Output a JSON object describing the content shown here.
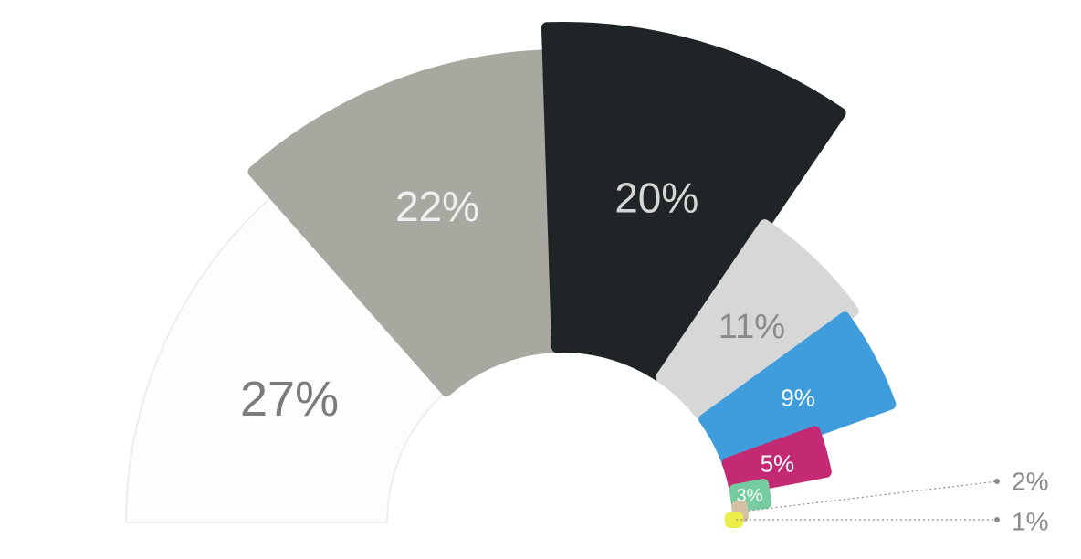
{
  "chart_data": {
    "type": "pie",
    "variant": "half-donut",
    "slices": [
      {
        "label": "27%",
        "value": 27,
        "color": "#fdfdfd",
        "text_color": "#7b7b7b"
      },
      {
        "label": "22%",
        "value": 22,
        "color": "#a9a8a0",
        "text_color": "#efefef"
      },
      {
        "label": "20%",
        "value": 20,
        "color": "#1f2526",
        "text_color": "#d6d6d6"
      },
      {
        "label": "11%",
        "value": 11,
        "color": "#d7d7d7",
        "text_color": "#8a8a8a"
      },
      {
        "label": "9%",
        "value": 9,
        "color": "#409ddc",
        "text_color": "#ffffff"
      },
      {
        "label": "5%",
        "value": 5,
        "color": "#c42a74",
        "text_color": "#ffffff"
      },
      {
        "label": "3%",
        "value": 3,
        "color": "#74cca0",
        "text_color": "#ffffff"
      },
      {
        "label": "2%",
        "value": 2,
        "color": "#d4c0a2",
        "text_color": "#8a8a8a"
      },
      {
        "label": "1%",
        "value": 1,
        "color": "#ecef4a",
        "text_color": "#8a8a8a"
      }
    ]
  }
}
